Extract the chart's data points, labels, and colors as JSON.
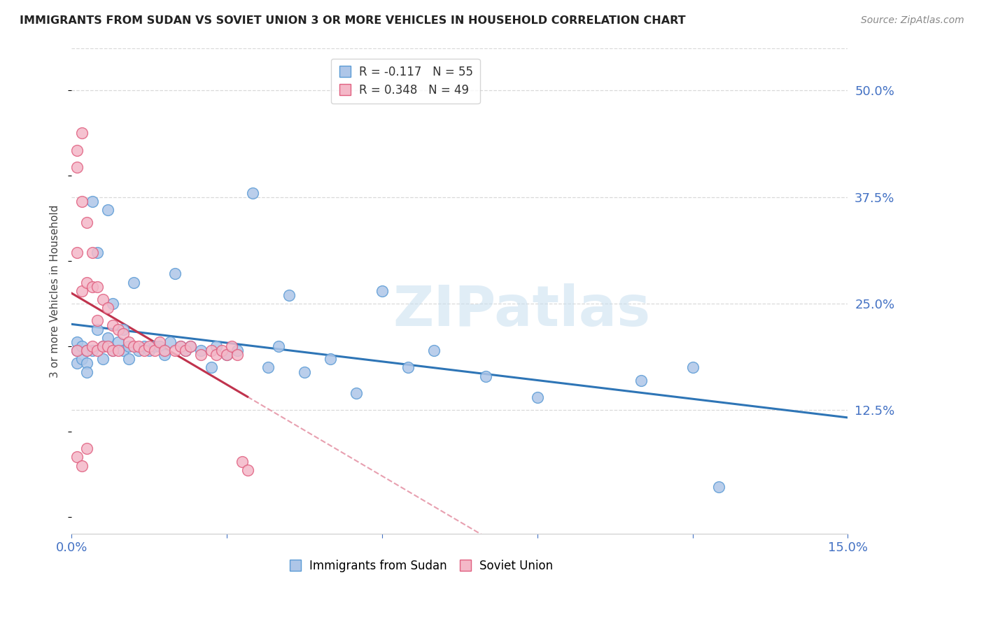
{
  "title": "IMMIGRANTS FROM SUDAN VS SOVIET UNION 3 OR MORE VEHICLES IN HOUSEHOLD CORRELATION CHART",
  "source": "Source: ZipAtlas.com",
  "ylabel": "3 or more Vehicles in Household",
  "x_min": 0.0,
  "x_max": 0.15,
  "y_min": -0.02,
  "y_max": 0.55,
  "y_ticks_right": [
    0.125,
    0.25,
    0.375,
    0.5
  ],
  "y_tick_labels_right": [
    "12.5%",
    "25.0%",
    "37.5%",
    "50.0%"
  ],
  "sudan_color": "#aec6e8",
  "sudan_edge_color": "#5b9bd5",
  "soviet_color": "#f4b8c8",
  "soviet_edge_color": "#e06080",
  "sudan_line_color": "#2e75b6",
  "soviet_line_color": "#c0334d",
  "diag_color": "#e8a0b0",
  "R_sudan": -0.117,
  "N_sudan": 55,
  "R_soviet": 0.348,
  "N_soviet": 49,
  "legend_sudan": "Immigrants from Sudan",
  "legend_soviet": "Soviet Union",
  "watermark": "ZIPatlas",
  "grid_color": "#d9d9d9",
  "background_color": "#ffffff",
  "sudan_x": [
    0.001,
    0.001,
    0.001,
    0.002,
    0.002,
    0.003,
    0.003,
    0.003,
    0.004,
    0.004,
    0.005,
    0.005,
    0.006,
    0.006,
    0.007,
    0.007,
    0.008,
    0.008,
    0.009,
    0.01,
    0.01,
    0.011,
    0.011,
    0.012,
    0.013,
    0.014,
    0.015,
    0.016,
    0.017,
    0.018,
    0.019,
    0.02,
    0.021,
    0.022,
    0.023,
    0.025,
    0.027,
    0.028,
    0.03,
    0.032,
    0.035,
    0.038,
    0.04,
    0.042,
    0.045,
    0.05,
    0.055,
    0.06,
    0.065,
    0.07,
    0.08,
    0.09,
    0.11,
    0.12,
    0.125
  ],
  "sudan_y": [
    0.205,
    0.195,
    0.18,
    0.2,
    0.185,
    0.195,
    0.18,
    0.17,
    0.37,
    0.195,
    0.31,
    0.22,
    0.2,
    0.185,
    0.36,
    0.21,
    0.25,
    0.195,
    0.205,
    0.22,
    0.195,
    0.2,
    0.185,
    0.275,
    0.195,
    0.2,
    0.195,
    0.2,
    0.2,
    0.19,
    0.205,
    0.285,
    0.2,
    0.195,
    0.2,
    0.195,
    0.175,
    0.2,
    0.19,
    0.195,
    0.38,
    0.175,
    0.2,
    0.26,
    0.17,
    0.185,
    0.145,
    0.265,
    0.175,
    0.195,
    0.165,
    0.14,
    0.16,
    0.175,
    0.035
  ],
  "soviet_x": [
    0.001,
    0.001,
    0.001,
    0.001,
    0.001,
    0.002,
    0.002,
    0.002,
    0.002,
    0.003,
    0.003,
    0.003,
    0.003,
    0.004,
    0.004,
    0.004,
    0.005,
    0.005,
    0.005,
    0.006,
    0.006,
    0.007,
    0.007,
    0.008,
    0.008,
    0.009,
    0.009,
    0.01,
    0.011,
    0.012,
    0.013,
    0.014,
    0.015,
    0.016,
    0.017,
    0.018,
    0.02,
    0.021,
    0.022,
    0.023,
    0.025,
    0.027,
    0.028,
    0.029,
    0.03,
    0.031,
    0.032,
    0.033,
    0.034
  ],
  "soviet_y": [
    0.43,
    0.41,
    0.31,
    0.195,
    0.07,
    0.45,
    0.37,
    0.265,
    0.06,
    0.345,
    0.275,
    0.195,
    0.08,
    0.31,
    0.27,
    0.2,
    0.27,
    0.23,
    0.195,
    0.255,
    0.2,
    0.245,
    0.2,
    0.225,
    0.195,
    0.22,
    0.195,
    0.215,
    0.205,
    0.2,
    0.2,
    0.195,
    0.2,
    0.195,
    0.205,
    0.195,
    0.195,
    0.2,
    0.195,
    0.2,
    0.19,
    0.195,
    0.19,
    0.195,
    0.19,
    0.2,
    0.19,
    0.065,
    0.055
  ]
}
